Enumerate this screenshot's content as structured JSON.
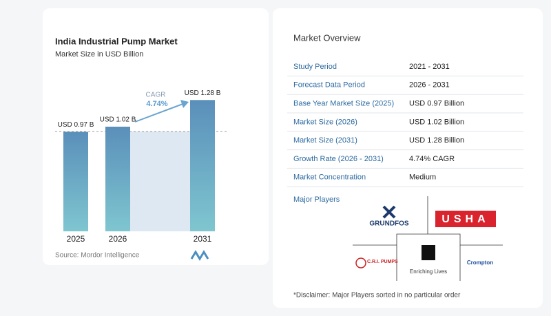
{
  "chart_data": {
    "type": "bar",
    "title": "India Industrial Pump Market",
    "subtitle": "Market Size in USD Billion",
    "categories": [
      "2025",
      "2026",
      "2031"
    ],
    "values": [
      0.97,
      1.02,
      1.28
    ],
    "value_labels": [
      "USD 0.97 B",
      "USD 1.02 B",
      "USD 1.28 B"
    ],
    "annotations": {
      "cagr_label": "CAGR",
      "cagr_value": "4.74%"
    },
    "source": "Source: Mordor Intelligence"
  },
  "overview": {
    "title": "Market Overview",
    "rows": [
      [
        "Study Period",
        "2021 - 2031"
      ],
      [
        "Forecast Data Period",
        "2026 - 2031"
      ],
      [
        "Base Year Market Size (2025)",
        "USD 0.97 Billion"
      ],
      [
        "Market Size (2026)",
        "USD 1.02 Billion"
      ],
      [
        "Market Size (2031)",
        "USD 1.28 Billion"
      ],
      [
        "Growth Rate (2026 - 2031)",
        "4.74% CAGR"
      ],
      [
        "Market Concentration",
        "Medium"
      ]
    ],
    "players_title": "Major Players",
    "players": [
      "GRUNDFOS",
      "USHA",
      "C.R.I. PUMPS",
      "Enriching Lives",
      "Crompton"
    ],
    "disclaimer": "*Disclaimer: Major Players sorted in no particular order"
  }
}
